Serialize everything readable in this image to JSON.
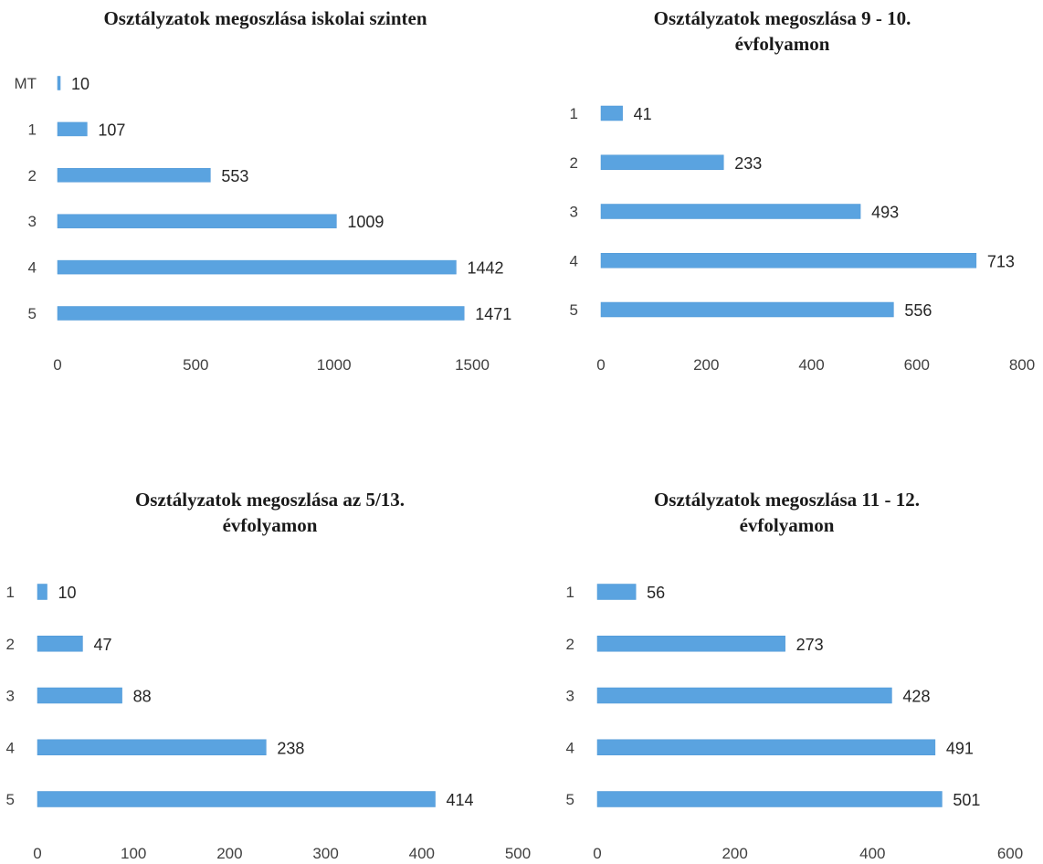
{
  "colors": {
    "bar": "#5aa3e0",
    "bar_edge": "#4f97d6"
  },
  "chart_data": [
    {
      "type": "bar",
      "orientation": "horizontal",
      "title": "Osztályzatok megoszlása iskolai szinten",
      "categories": [
        "MT",
        "1",
        "2",
        "3",
        "4",
        "5"
      ],
      "values": [
        10,
        107,
        553,
        1009,
        1442,
        1471
      ],
      "xlim": [
        0,
        1500
      ],
      "xticks": [
        0,
        500,
        1000,
        1500
      ],
      "grid": false,
      "legend": "none"
    },
    {
      "type": "bar",
      "orientation": "horizontal",
      "title": "Osztályzatok megoszlása 9 - 10.\névfolyamon",
      "categories": [
        "1",
        "2",
        "3",
        "4",
        "5"
      ],
      "values": [
        41,
        233,
        493,
        713,
        556
      ],
      "xlim": [
        0,
        800
      ],
      "xticks": [
        0,
        200,
        400,
        600,
        800
      ],
      "grid": false,
      "legend": "none"
    },
    {
      "type": "bar",
      "orientation": "horizontal",
      "title": "Osztályzatok megoszlása az 5/13.\névfolyamon",
      "categories": [
        "1",
        "2",
        "3",
        "4",
        "5"
      ],
      "values": [
        10,
        47,
        88,
        238,
        414
      ],
      "xlim": [
        0,
        500
      ],
      "xticks": [
        0,
        100,
        200,
        300,
        400,
        500
      ],
      "grid": false,
      "legend": "none"
    },
    {
      "type": "bar",
      "orientation": "horizontal",
      "title": "Osztályzatok megoszlása 11 - 12.\névfolyamon",
      "categories": [
        "1",
        "2",
        "3",
        "4",
        "5"
      ],
      "values": [
        56,
        273,
        428,
        491,
        501
      ],
      "xlim": [
        0,
        600
      ],
      "xticks": [
        0,
        200,
        400,
        600
      ],
      "grid": false,
      "legend": "none"
    }
  ]
}
